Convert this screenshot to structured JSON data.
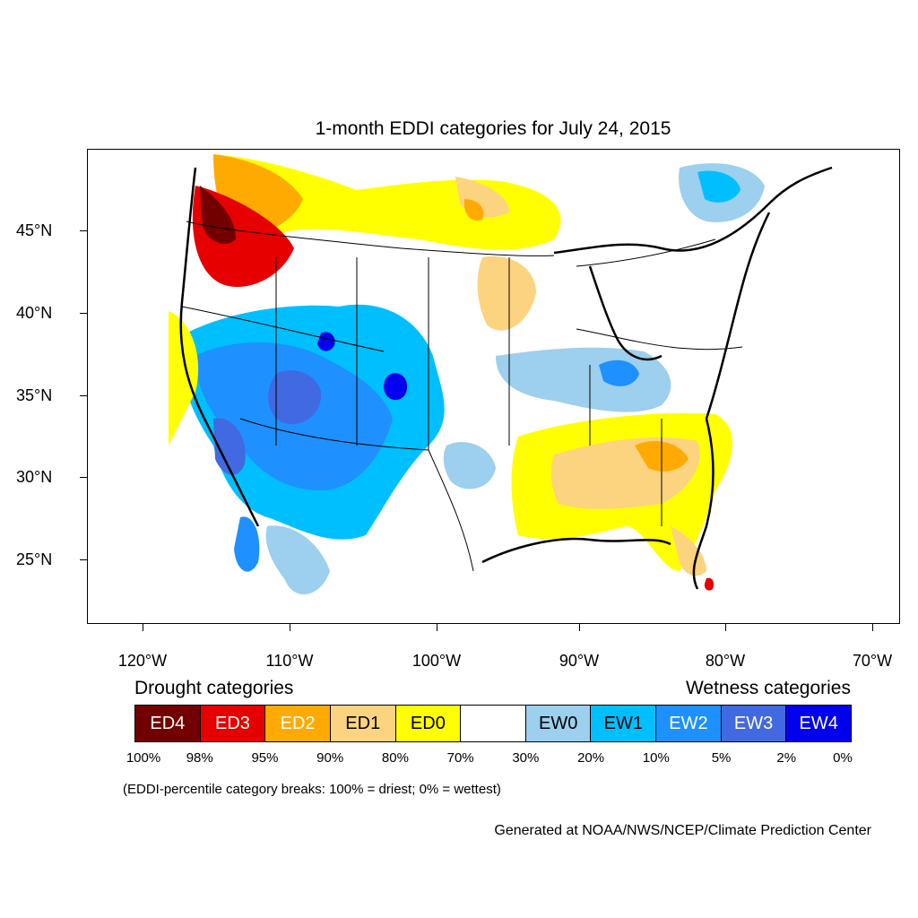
{
  "title": "1-month EDDI categories for July 24, 2015",
  "lat_labels": [
    "45°N",
    "40°N",
    "35°N",
    "30°N",
    "25°N"
  ],
  "lon_labels": [
    "120°W",
    "110°W",
    "100°W",
    "90°W",
    "80°W",
    "70°W"
  ],
  "legend": {
    "drought_heading": "Drought categories",
    "wetness_heading": "Wetness categories",
    "categories": [
      {
        "label": "ED4",
        "color": "#730000",
        "text_color": "#ffffff"
      },
      {
        "label": "ED3",
        "color": "#e60000",
        "text_color": "#ffffff"
      },
      {
        "label": "ED2",
        "color": "#ffaa00",
        "text_color": "#ffffff"
      },
      {
        "label": "ED1",
        "color": "#fcd37f",
        "text_color": "#000000"
      },
      {
        "label": "ED0",
        "color": "#ffff00",
        "text_color": "#000000"
      },
      {
        "label": "",
        "color": "#ffffff",
        "text_color": "#000000"
      },
      {
        "label": "EW0",
        "color": "#9dcfee",
        "text_color": "#000000"
      },
      {
        "label": "EW1",
        "color": "#00bfff",
        "text_color": "#000000"
      },
      {
        "label": "EW2",
        "color": "#1e90ff",
        "text_color": "#ffffff"
      },
      {
        "label": "EW3",
        "color": "#4169e1",
        "text_color": "#ffffff"
      },
      {
        "label": "EW4",
        "color": "#0000ee",
        "text_color": "#ffffff"
      }
    ],
    "breaks": [
      "100%",
      "98%",
      "95%",
      "90%",
      "80%",
      "70%",
      "30%",
      "20%",
      "10%",
      "5%",
      "2%",
      "0%"
    ]
  },
  "note": "(EDDI-percentile category breaks: 100% = driest; 0% = wettest)",
  "credit": "Generated at NOAA/NWS/NCEP/Climate Prediction Center"
}
